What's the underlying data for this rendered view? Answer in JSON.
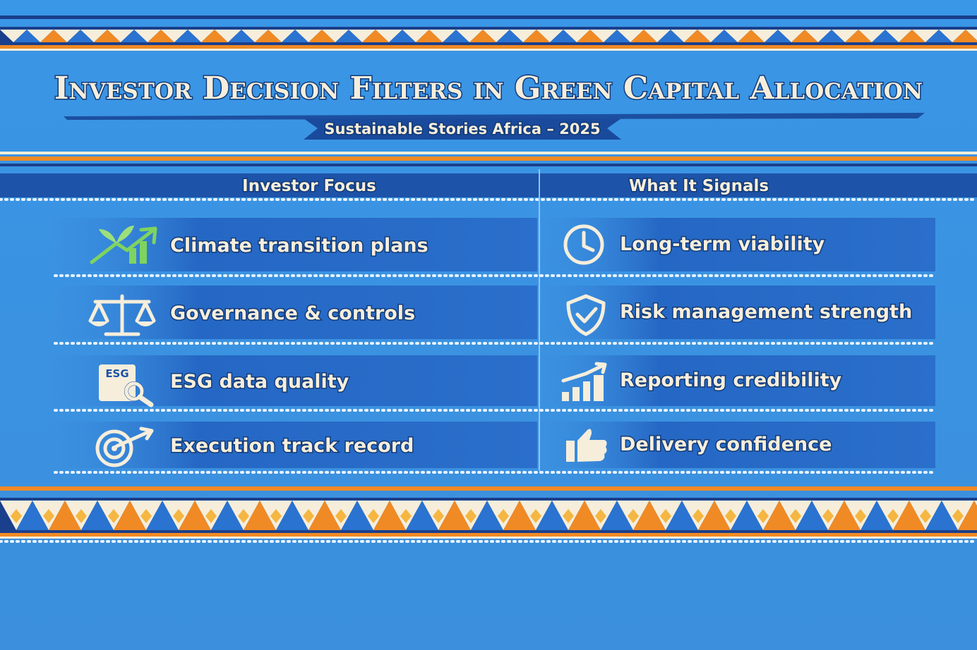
{
  "header": {
    "title": "Investor Decision Filters in Green Capital Allocation",
    "subtitle": "Sustainable Stories Africa – 2025"
  },
  "table": {
    "columns": [
      "Investor Focus",
      "What It Signals"
    ],
    "rows": [
      [
        "Climate transition plans",
        "Long-term viability"
      ],
      [
        "Governance & controls",
        "Risk management strength"
      ],
      [
        "ESG data quality",
        "Reporting credibility"
      ],
      [
        "Execution track record",
        "Delivery confidence"
      ]
    ]
  }
}
